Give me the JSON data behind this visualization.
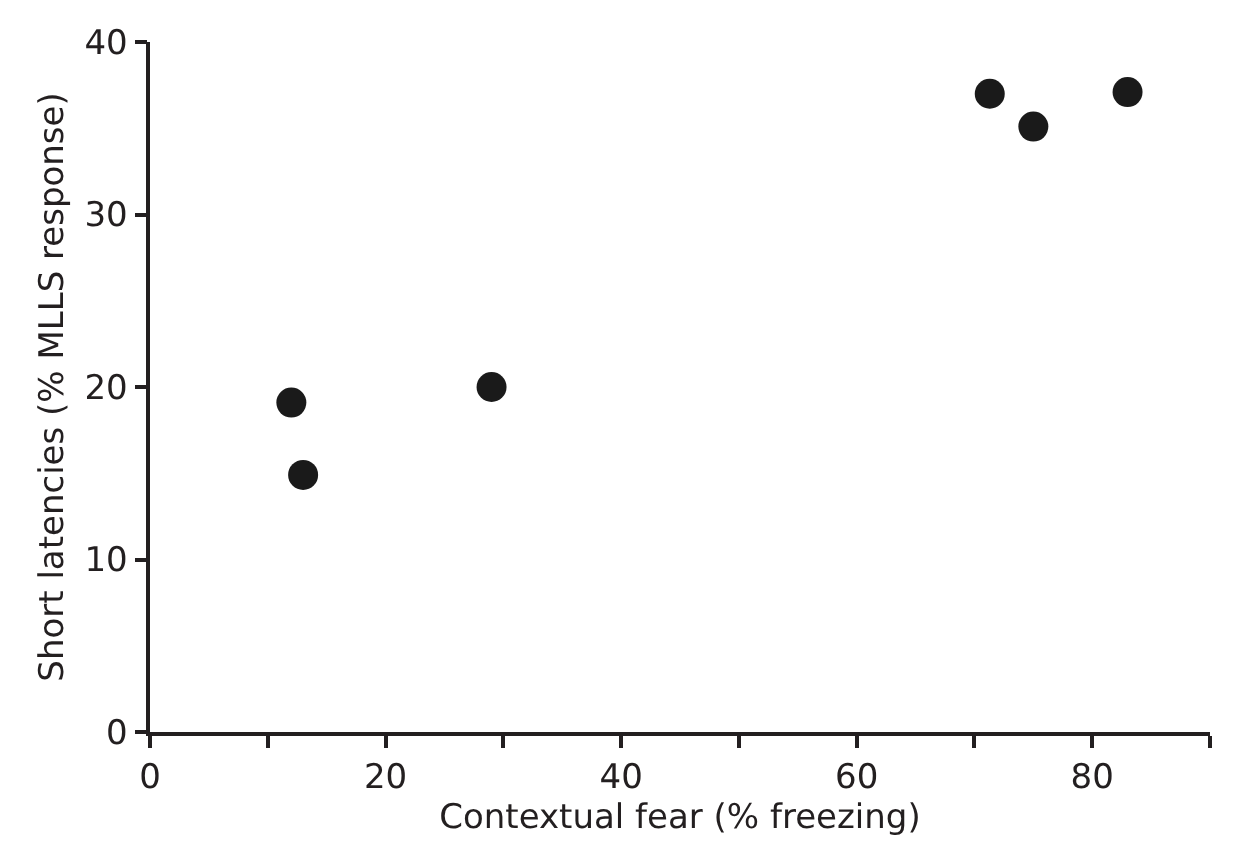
{
  "chart_data": {
    "type": "scatter",
    "xlabel": "Contextual fear (% freezing)",
    "ylabel": "Short latencies (% MLLS response)",
    "x": [
      12,
      13,
      29,
      71.3,
      75,
      83
    ],
    "values": [
      19.1,
      14.9,
      20,
      37,
      35.1,
      37.1
    ],
    "color": "#1a1a1a",
    "marker": "circle",
    "xlim": [
      0,
      90
    ],
    "ylim": [
      0,
      40
    ],
    "xticks": [
      0,
      {
        "value": 10,
        "label": null
      },
      20,
      {
        "value": 30,
        "label": null
      },
      40,
      {
        "value": 50,
        "label": null
      },
      60,
      {
        "value": 70,
        "label": null
      },
      80,
      {
        "value": 90,
        "label": null
      }
    ],
    "yticks": [
      0,
      10,
      20,
      30,
      40
    ]
  }
}
